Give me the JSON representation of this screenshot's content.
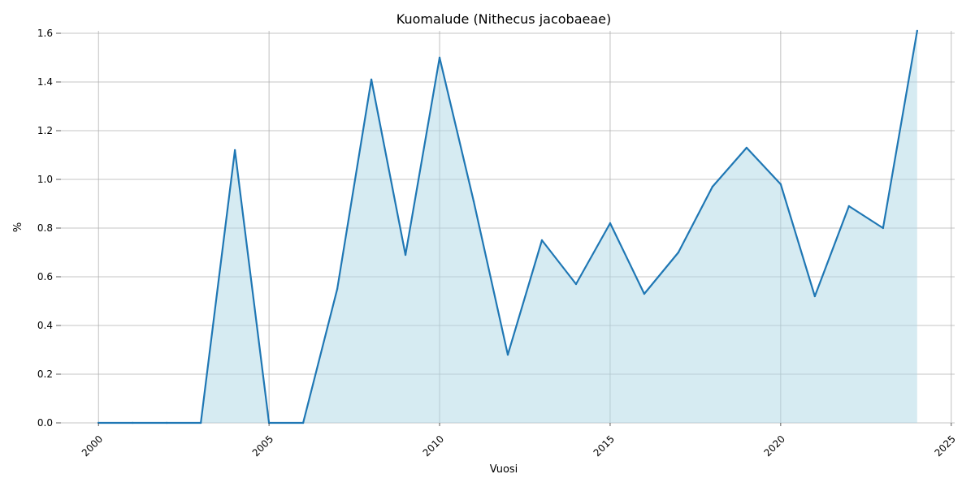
{
  "chart_data": {
    "type": "area",
    "title": "Kuomalude (Nithecus jacobaeae)",
    "xlabel": "Vuosi",
    "ylabel": "%",
    "xlim": [
      1998.9,
      2025.1
    ],
    "ylim": [
      0,
      1.61
    ],
    "x_ticks": [
      2000,
      2005,
      2010,
      2015,
      2020,
      2025
    ],
    "y_ticks": [
      0.0,
      0.2,
      0.4,
      0.6,
      0.8,
      1.0,
      1.2,
      1.4,
      1.6
    ],
    "x_tick_labels": [
      "2000",
      "2005",
      "2010",
      "2015",
      "2020",
      "2025"
    ],
    "y_tick_labels": [
      "0.0",
      "0.2",
      "0.4",
      "0.6",
      "0.8",
      "1.0",
      "1.2",
      "1.4",
      "1.6"
    ],
    "grid": true,
    "colors": {
      "line": "#1f77b4",
      "fill": "#add8e6",
      "grid": "#b0b0b0"
    },
    "series": [
      {
        "x": [
          2000,
          2001,
          2002,
          2003,
          2004,
          2005,
          2006,
          2007,
          2008,
          2009,
          2010,
          2011,
          2012,
          2013,
          2014,
          2015,
          2016,
          2017,
          2018,
          2019,
          2020,
          2021,
          2022,
          2023,
          2024
        ],
        "values": [
          0,
          0,
          0,
          0,
          1.12,
          0,
          0,
          0.55,
          1.41,
          0.69,
          1.5,
          0.91,
          0.28,
          0.75,
          0.57,
          0.82,
          0.53,
          0.7,
          0.97,
          1.13,
          0.98,
          0.52,
          0.89,
          0.8,
          1.61
        ]
      }
    ]
  }
}
